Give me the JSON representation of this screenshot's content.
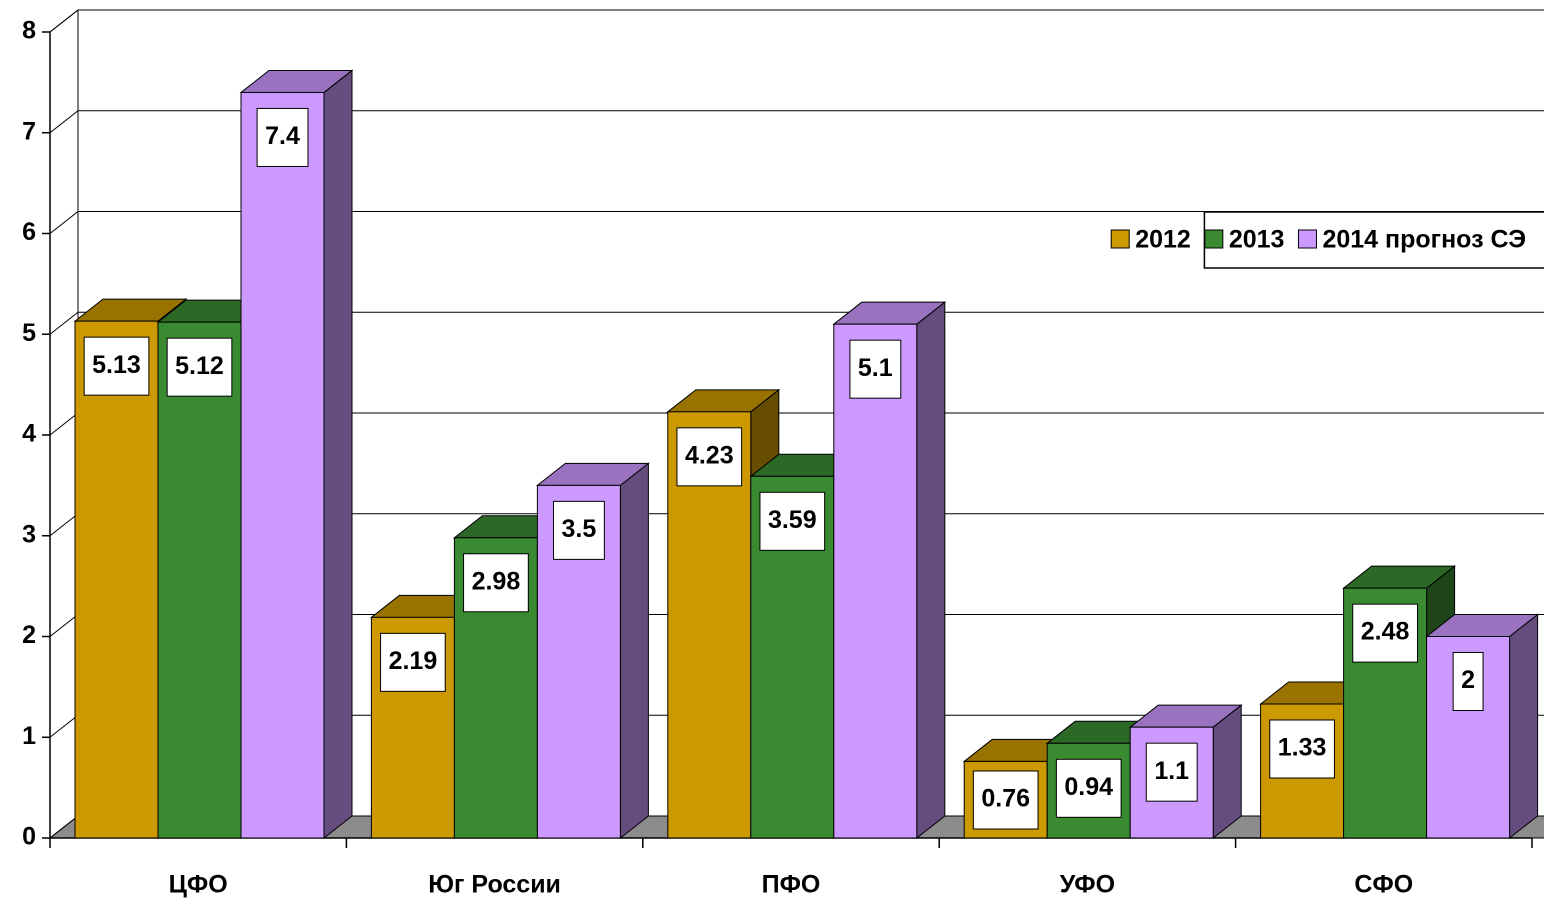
{
  "chart_data": {
    "type": "bar3d",
    "categories": [
      "ЦФО",
      "Юг России",
      "ПФО",
      "УФО",
      "СФО"
    ],
    "series": [
      {
        "name": "2012",
        "color": "#cc9900",
        "values": [
          5.13,
          2.19,
          4.23,
          0.76,
          1.33
        ]
      },
      {
        "name": "2013",
        "color": "#3a8a32",
        "values": [
          5.12,
          2.98,
          3.59,
          0.94,
          2.48
        ]
      },
      {
        "name": "2014 прогноз СЭ",
        "color": "#cc99ff",
        "values": [
          7.4,
          3.5,
          5.1,
          1.1,
          2
        ]
      }
    ],
    "ylim": [
      0,
      8
    ],
    "yticks": [
      0,
      1,
      2,
      3,
      4,
      5,
      6,
      7,
      8
    ],
    "grid": true,
    "legend": "upper right"
  }
}
